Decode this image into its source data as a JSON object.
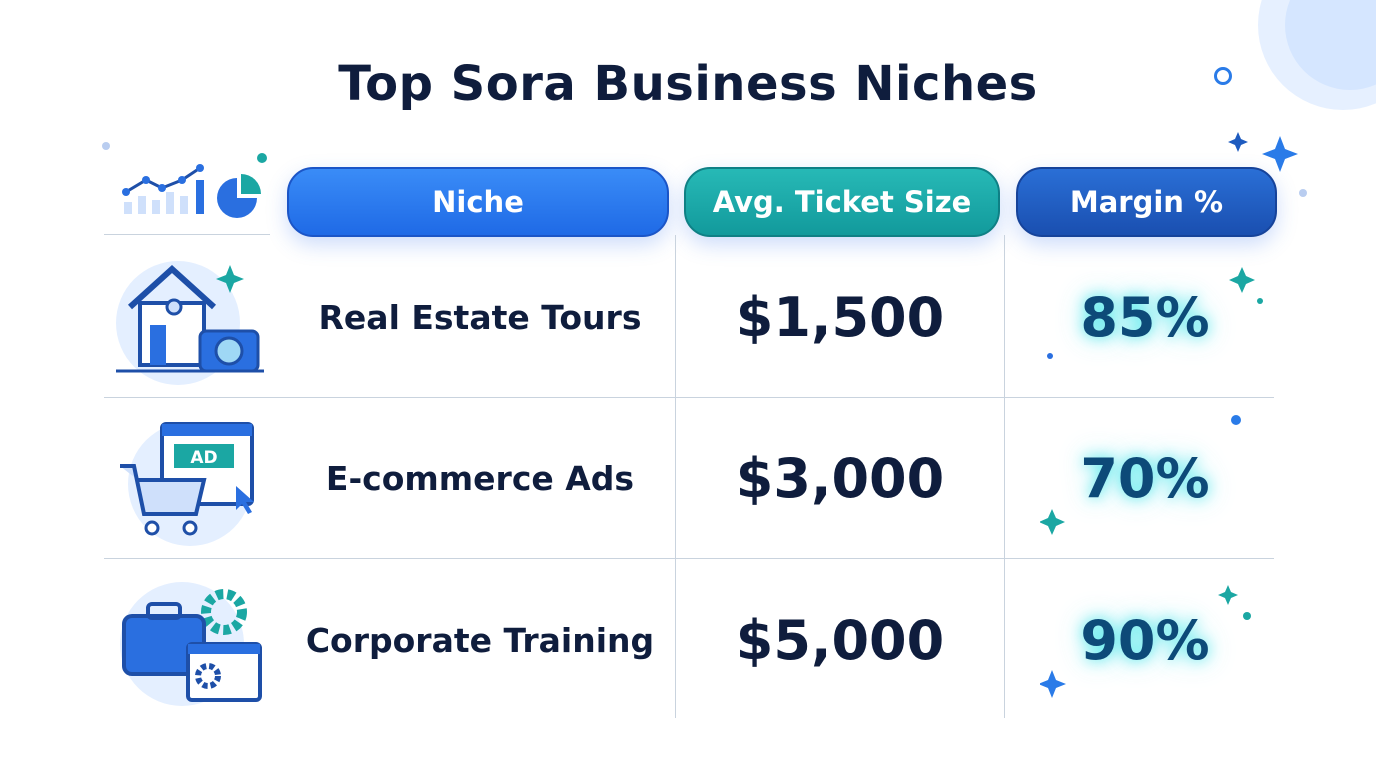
{
  "title": "Top Sora Business Niches",
  "colors": {
    "niche_header": "#2b7bef",
    "ticket_header": "#1aa7a8",
    "margin_header": "#1e5bbf",
    "text": "#0f1d3d",
    "margin_text": "#0d4a78"
  },
  "chart_data": {
    "type": "table",
    "title": "Top Sora Business Niches",
    "columns": [
      "Niche",
      "Avg. Ticket Size",
      "Margin %"
    ],
    "rows": [
      {
        "icon": "house-camera-icon",
        "niche": "Real Estate Tours",
        "ticket": "$1,500",
        "margin": "85%"
      },
      {
        "icon": "shopping-cart-ad-icon",
        "niche": "E-commerce Ads",
        "ticket": "$3,000",
        "margin": "70%"
      },
      {
        "icon": "briefcase-gear-icon",
        "niche": "Corporate Training",
        "ticket": "$5,000",
        "margin": "90%"
      }
    ]
  }
}
